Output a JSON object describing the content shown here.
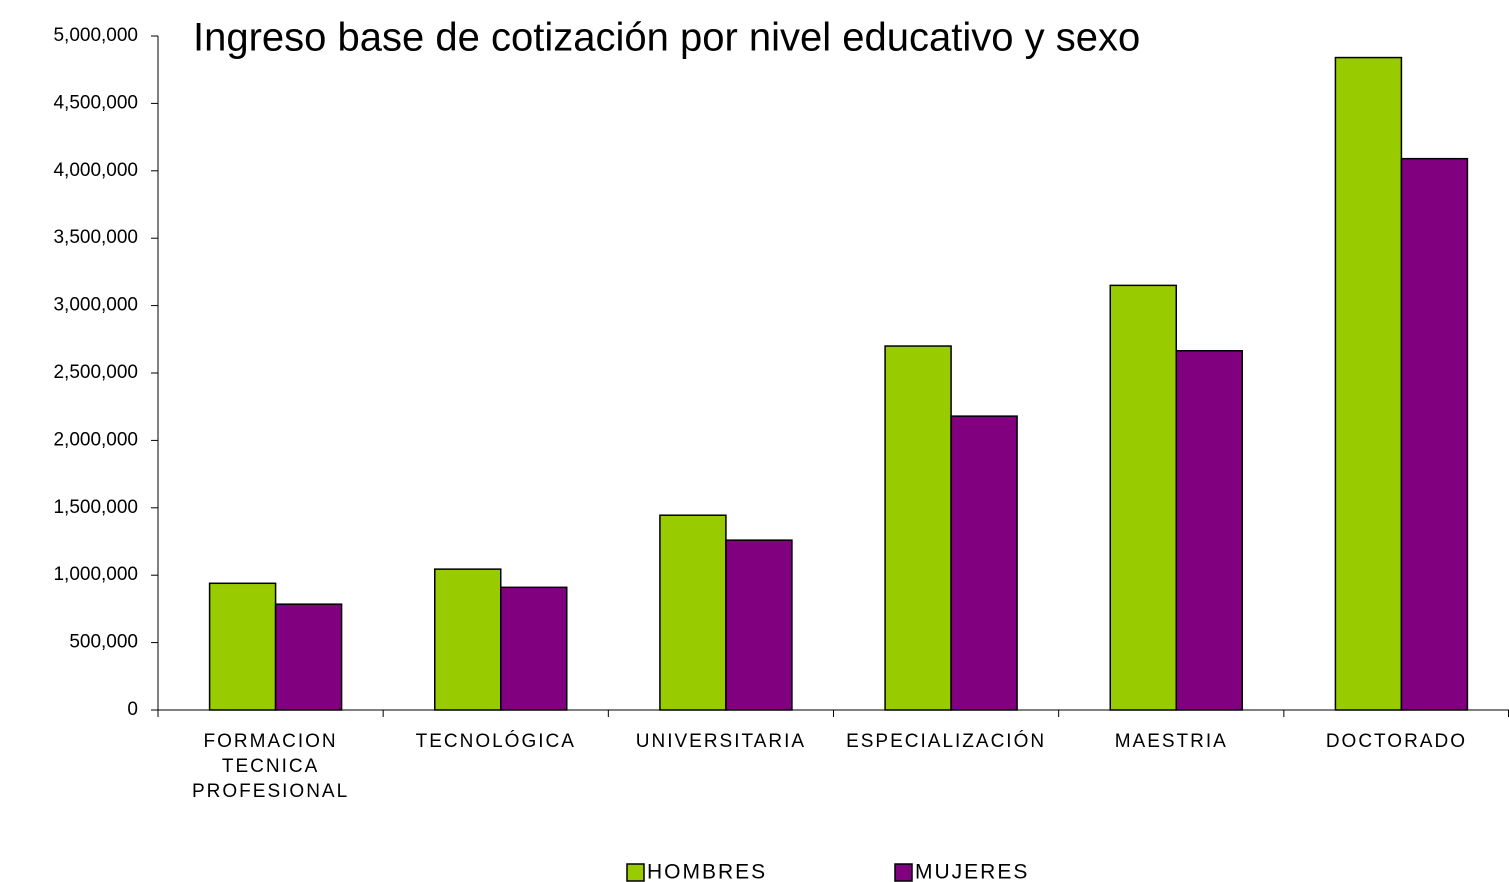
{
  "chart_data": {
    "type": "bar",
    "title": "Ingreso base de cotización por nivel educativo y sexo",
    "categories": [
      "FORMACION TECNICA PROFESIONAL",
      "TECNOLÓGICA",
      "UNIVERSITARIA",
      "ESPECIALIZACIÓN",
      "MAESTRIA",
      "DOCTORADO"
    ],
    "series": [
      {
        "name": "HOMBRES",
        "color": "#99cc00",
        "values": [
          940000,
          1045000,
          1445000,
          2700000,
          3150000,
          4840000
        ]
      },
      {
        "name": "MUJERES",
        "color": "#800080",
        "values": [
          785000,
          910000,
          1260000,
          2180000,
          2665000,
          4090000
        ]
      }
    ],
    "ylim": [
      0,
      5000000
    ],
    "yticks": [
      0,
      {
        "value": 500000,
        "label": "500,000"
      },
      {
        "value": 1000000,
        "label": "1,000,000"
      },
      {
        "value": 1500000,
        "label": "1,500,000"
      },
      {
        "value": 2000000,
        "label": "2,000,000"
      },
      {
        "value": 2500000,
        "label": "2,500,000"
      },
      {
        "value": 3000000,
        "label": "3,000,000"
      },
      {
        "value": 3500000,
        "label": "3,500,000"
      },
      {
        "value": 4000000,
        "label": "4,000,000"
      },
      {
        "value": 4500000,
        "label": "4,500,000"
      },
      {
        "value": 5000000,
        "label": "5,000,000"
      }
    ],
    "legend": "bottom"
  }
}
